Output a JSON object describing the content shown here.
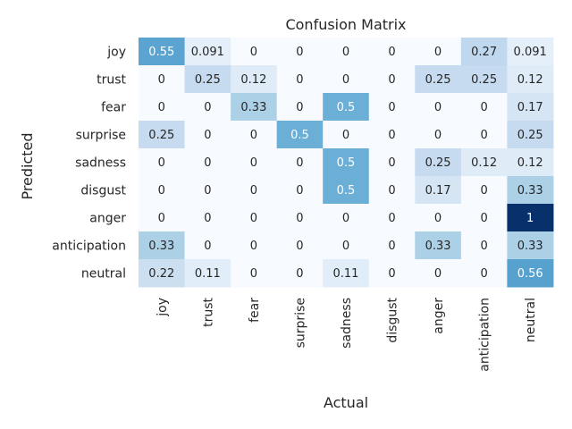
{
  "chart_data": {
    "type": "heatmap",
    "title": "Confusion Matrix",
    "xlabel": "Actual",
    "ylabel": "Predicted",
    "x_categories": [
      "joy",
      "trust",
      "fear",
      "surprise",
      "sadness",
      "disgust",
      "anger",
      "anticipation",
      "neutral"
    ],
    "y_categories": [
      "joy",
      "trust",
      "fear",
      "surprise",
      "sadness",
      "disgust",
      "anger",
      "anticipation",
      "neutral"
    ],
    "values": [
      [
        "0.55",
        "0.091",
        "0",
        "0",
        "0",
        "0",
        "0",
        "0.27",
        "0.091"
      ],
      [
        "0",
        "0.25",
        "0.12",
        "0",
        "0",
        "0",
        "0.25",
        "0.25",
        "0.12"
      ],
      [
        "0",
        "0",
        "0.33",
        "0",
        "0.5",
        "0",
        "0",
        "0",
        "0.17"
      ],
      [
        "0.25",
        "0",
        "0",
        "0.5",
        "0",
        "0",
        "0",
        "0",
        "0.25"
      ],
      [
        "0",
        "0",
        "0",
        "0",
        "0.5",
        "0",
        "0.25",
        "0.12",
        "0.12"
      ],
      [
        "0",
        "0",
        "0",
        "0",
        "0.5",
        "0",
        "0.17",
        "0",
        "0.33"
      ],
      [
        "0",
        "0",
        "0",
        "0",
        "0",
        "0",
        "0",
        "0",
        "1"
      ],
      [
        "0.33",
        "0",
        "0",
        "0",
        "0",
        "0",
        "0.33",
        "0",
        "0.33"
      ],
      [
        "0.22",
        "0.11",
        "0",
        "0",
        "0.11",
        "0",
        "0",
        "0",
        "0.56"
      ]
    ],
    "colormap": "Blues",
    "vmin": 0,
    "vmax": 1,
    "grid": false,
    "colors": {
      "low": "#f7fbff",
      "high": "#08306b",
      "text_dark": "#262626",
      "text_light": "#ffffff"
    }
  }
}
